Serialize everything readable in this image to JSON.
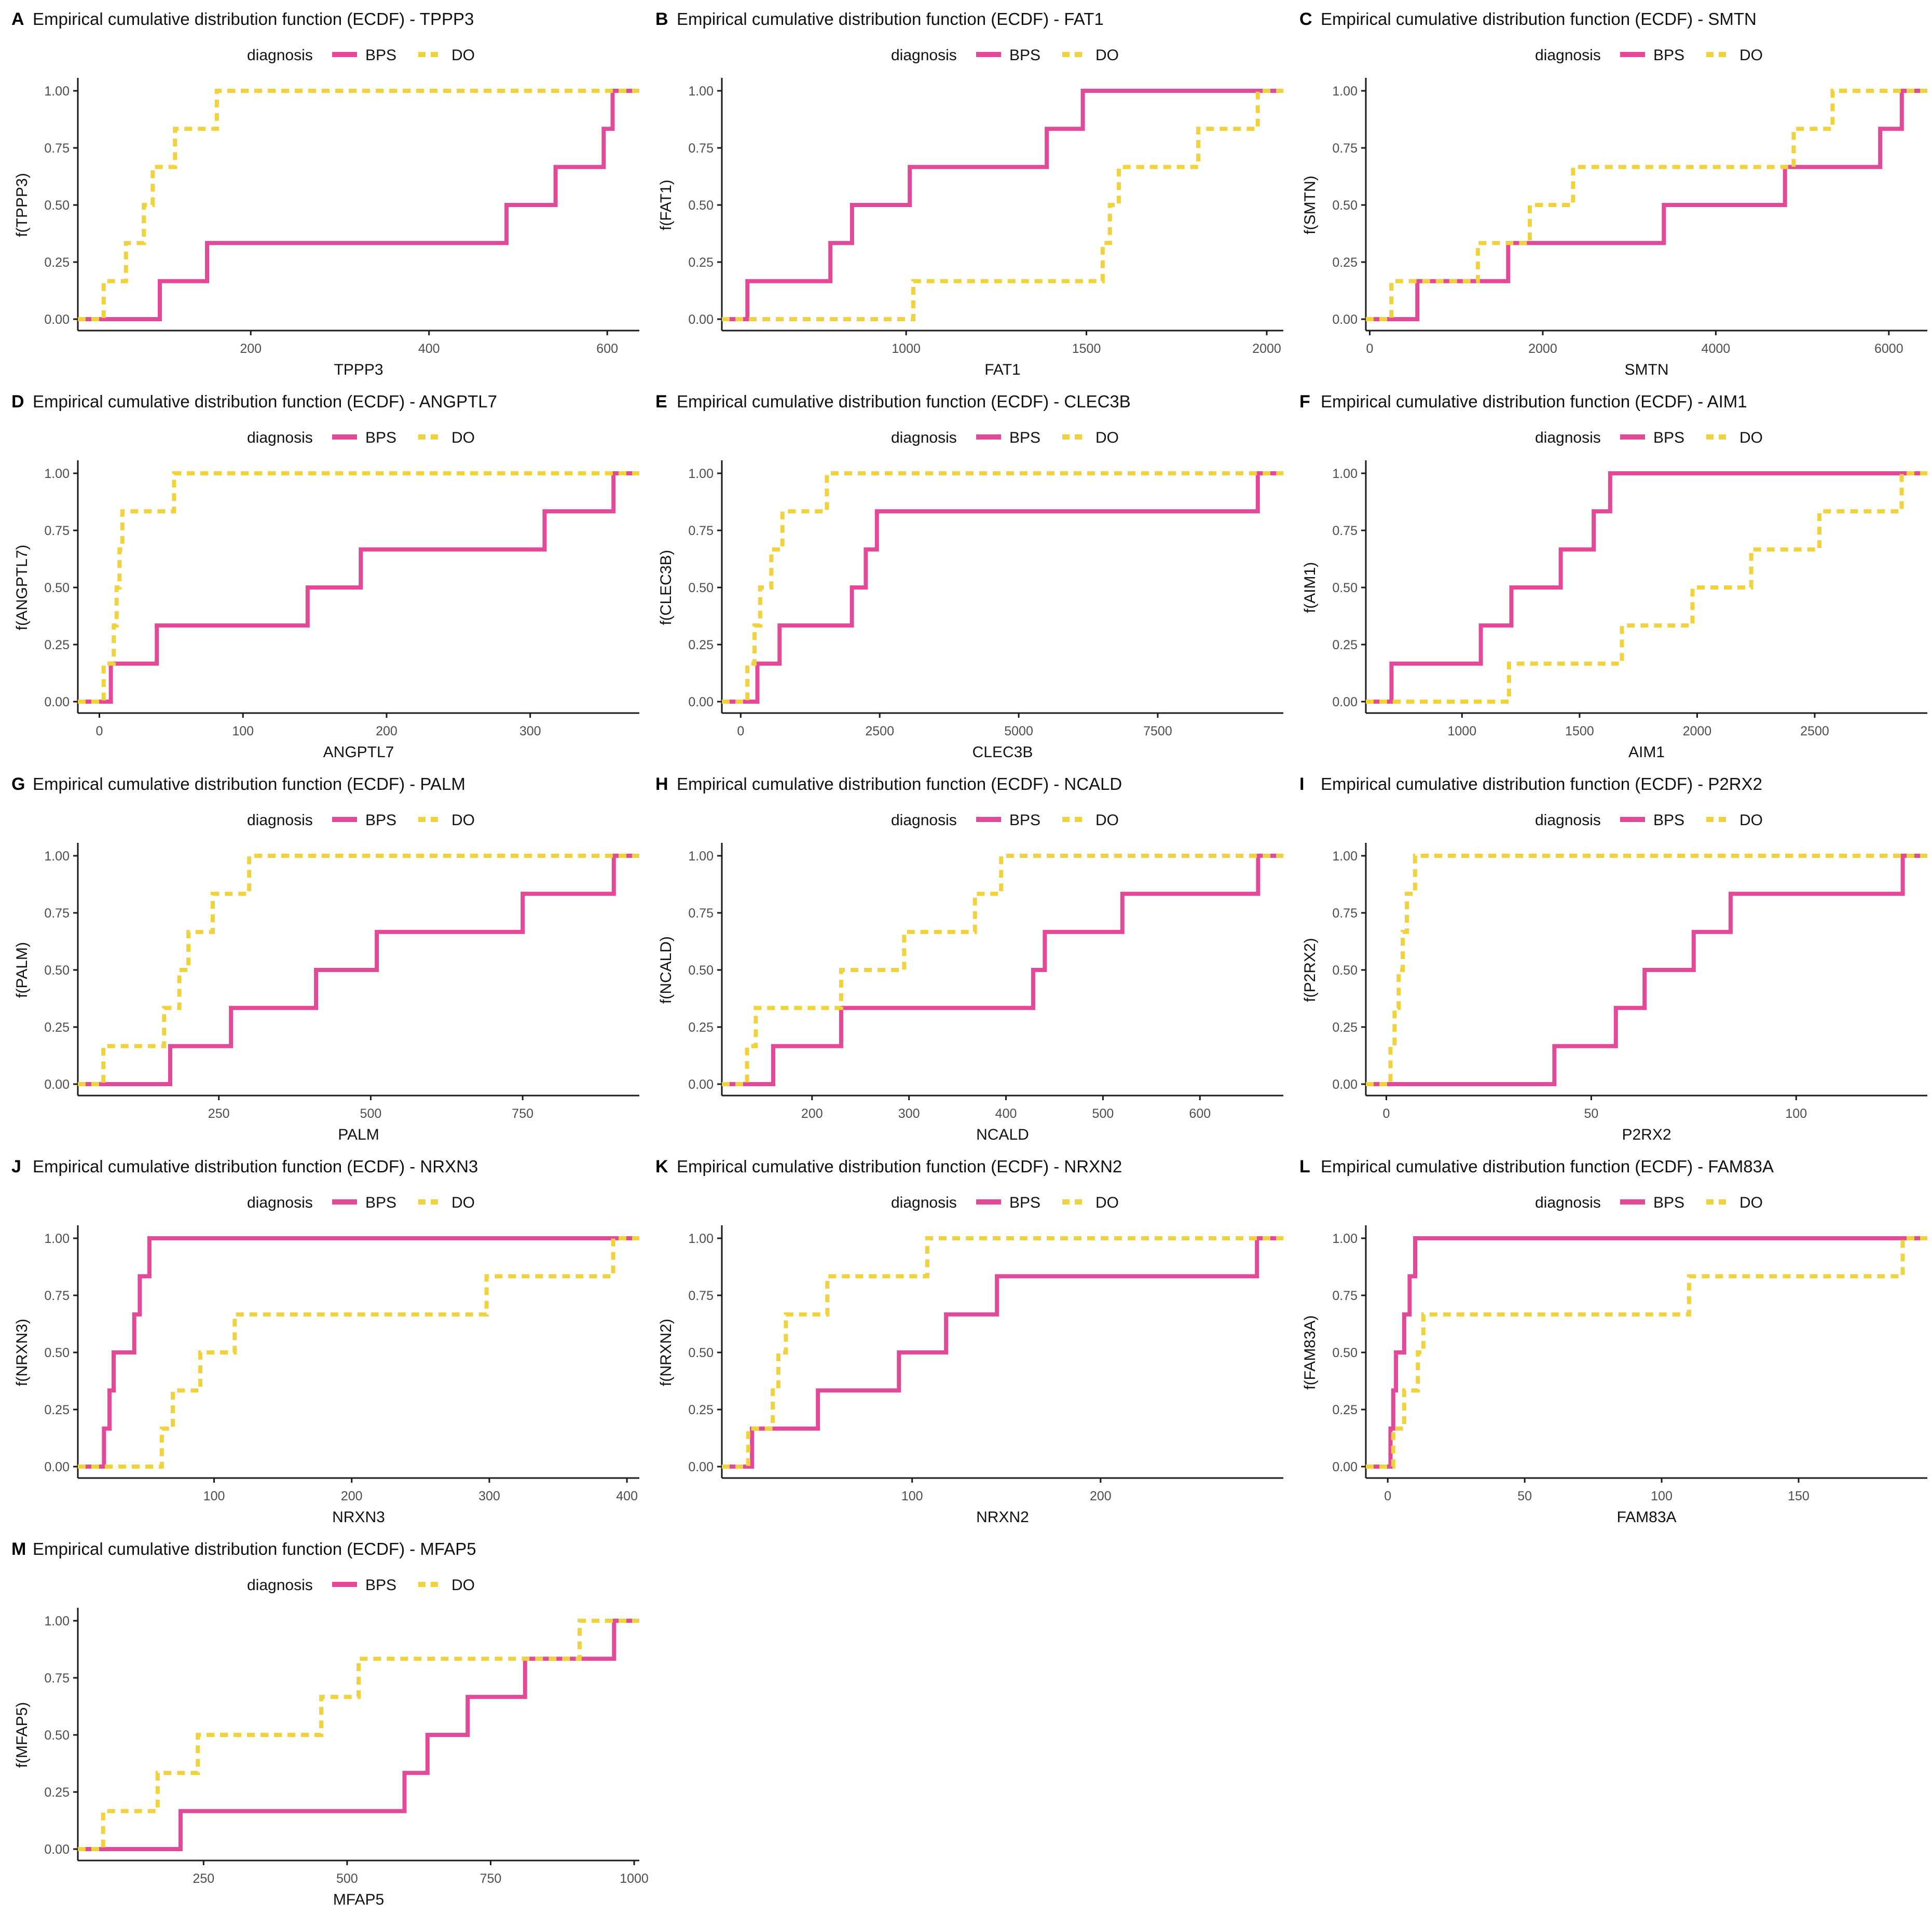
{
  "figure_type": "ecdf-grid",
  "series_colors": {
    "bps": "#E24A99",
    "do": "#EFD23E"
  },
  "axis_text_color": "#4D4D4D",
  "axis_line_color": "#1a1a1a",
  "legend": {
    "title": "diagnosis",
    "bps_label": "BPS",
    "do_label": "DO"
  },
  "y_ticks": [
    "0.00",
    "0.25",
    "0.50",
    "0.75",
    "1.00"
  ],
  "chart_data": [
    {
      "type": "line",
      "subtype": "ecdf-step",
      "letter": "A",
      "title": "Empirical cumulative distribution function (ECDF) -  TPPP3",
      "xlabel": "TPPP3",
      "ylabel": "f(TPPP3)",
      "xlim": [
        6,
        636
      ],
      "xticks": [
        200,
        400,
        600
      ],
      "ylim": [
        0,
        1
      ],
      "series": [
        {
          "name": "BPS",
          "color_key": "bps",
          "dash": false,
          "values": [
            98,
            151,
            487,
            542,
            596,
            606
          ]
        },
        {
          "name": "DO",
          "color_key": "do",
          "dash": true,
          "values": [
            35,
            60,
            80,
            90,
            115,
            162
          ]
        }
      ]
    },
    {
      "type": "line",
      "subtype": "ecdf-step",
      "letter": "B",
      "title": "Empirical cumulative distribution function (ECDF) -  FAT1",
      "xlabel": "FAT1",
      "ylabel": "f(FAT1)",
      "xlim": [
        489,
        2046
      ],
      "xticks": [
        1000,
        1500,
        2000
      ],
      "ylim": [
        0,
        1
      ],
      "series": [
        {
          "name": "BPS",
          "color_key": "bps",
          "dash": false,
          "values": [
            560,
            790,
            850,
            1010,
            1390,
            1490
          ]
        },
        {
          "name": "DO",
          "color_key": "do",
          "dash": true,
          "values": [
            1020,
            1545,
            1565,
            1590,
            1810,
            1975
          ]
        }
      ]
    },
    {
      "type": "line",
      "subtype": "ecdf-step",
      "letter": "C",
      "title": "Empirical cumulative distribution function (ECDF) -  SMTN",
      "xlabel": "SMTN",
      "ylabel": "f(SMTN)",
      "xlim": [
        -45,
        6445
      ],
      "xticks": [
        0,
        2000,
        4000,
        6000
      ],
      "ylim": [
        0,
        1
      ],
      "series": [
        {
          "name": "BPS",
          "color_key": "bps",
          "dash": false,
          "values": [
            550,
            1600,
            3400,
            4800,
            5900,
            6150
          ]
        },
        {
          "name": "DO",
          "color_key": "do",
          "dash": true,
          "values": [
            250,
            1250,
            1850,
            2350,
            4900,
            5350
          ]
        }
      ]
    },
    {
      "type": "line",
      "subtype": "ecdf-step",
      "letter": "D",
      "title": "Empirical cumulative distribution function (ECDF) -  ANGPTL7",
      "xlabel": "ANGPTL7",
      "ylabel": "f(ANGPTL7)",
      "xlim": [
        -15,
        376
      ],
      "xticks": [
        0,
        100,
        200,
        300
      ],
      "ylim": [
        0,
        1
      ],
      "series": [
        {
          "name": "BPS",
          "color_key": "bps",
          "dash": false,
          "values": [
            8,
            40,
            145,
            182,
            310,
            358
          ]
        },
        {
          "name": "DO",
          "color_key": "do",
          "dash": true,
          "values": [
            3,
            10,
            12,
            14,
            16,
            52
          ]
        }
      ]
    },
    {
      "type": "line",
      "subtype": "ecdf-step",
      "letter": "E",
      "title": "Empirical cumulative distribution function (ECDF) -  CLEC3B",
      "xlabel": "CLEC3B",
      "ylabel": "f(CLEC3B)",
      "xlim": [
        -339,
        9759
      ],
      "xticks": [
        0,
        2500,
        5000,
        7500
      ],
      "ylim": [
        0,
        1
      ],
      "series": [
        {
          "name": "BPS",
          "color_key": "bps",
          "dash": false,
          "values": [
            300,
            700,
            2000,
            2250,
            2450,
            9300
          ]
        },
        {
          "name": "DO",
          "color_key": "do",
          "dash": true,
          "values": [
            120,
            250,
            350,
            550,
            750,
            1550
          ]
        }
      ]
    },
    {
      "type": "line",
      "subtype": "ecdf-step",
      "letter": "F",
      "title": "Empirical cumulative distribution function (ECDF) -  AIM1",
      "xlabel": "AIM1",
      "ylabel": "f(AIM1)",
      "xlim": [
        591,
        2979
      ],
      "xticks": [
        1000,
        1500,
        2000,
        2500
      ],
      "ylim": [
        0,
        1
      ],
      "series": [
        {
          "name": "BPS",
          "color_key": "bps",
          "dash": false,
          "values": [
            700,
            1080,
            1210,
            1420,
            1560,
            1630
          ]
        },
        {
          "name": "DO",
          "color_key": "do",
          "dash": true,
          "values": [
            1200,
            1680,
            1980,
            2230,
            2520,
            2870
          ]
        }
      ]
    },
    {
      "type": "line",
      "subtype": "ecdf-step",
      "letter": "G",
      "title": "Empirical cumulative distribution function (ECDF) -  PALM",
      "xlabel": "PALM",
      "ylabel": "f(PALM)",
      "xlim": [
        18,
        942
      ],
      "xticks": [
        250,
        500,
        750
      ],
      "ylim": [
        0,
        1
      ],
      "series": [
        {
          "name": "BPS",
          "color_key": "bps",
          "dash": false,
          "values": [
            170,
            270,
            410,
            510,
            750,
            900
          ]
        },
        {
          "name": "DO",
          "color_key": "do",
          "dash": true,
          "values": [
            60,
            160,
            185,
            200,
            240,
            300
          ]
        }
      ]
    },
    {
      "type": "line",
      "subtype": "ecdf-step",
      "letter": "H",
      "title": "Empirical cumulative distribution function (ECDF) -  NCALD",
      "xlabel": "NCALD",
      "ylabel": "f(NCALD)",
      "xlim": [
        107,
        686
      ],
      "xticks": [
        200,
        300,
        400,
        500,
        600
      ],
      "ylim": [
        0,
        1
      ],
      "series": [
        {
          "name": "BPS",
          "color_key": "bps",
          "dash": false,
          "values": [
            160,
            230,
            428,
            440,
            520,
            660
          ]
        },
        {
          "name": "DO",
          "color_key": "do",
          "dash": true,
          "values": [
            133,
            142,
            230,
            295,
            368,
            395
          ]
        }
      ]
    },
    {
      "type": "line",
      "subtype": "ecdf-step",
      "letter": "I",
      "title": "Empirical cumulative distribution function (ECDF) -  P2RX2",
      "xlabel": "P2RX2",
      "ylabel": "f(P2RX2)",
      "xlim": [
        -5,
        132
      ],
      "xticks": [
        0,
        50,
        100
      ],
      "ylim": [
        0,
        1
      ],
      "series": [
        {
          "name": "BPS",
          "color_key": "bps",
          "dash": false,
          "values": [
            41,
            56,
            63,
            75,
            84,
            126
          ]
        },
        {
          "name": "DO",
          "color_key": "do",
          "dash": true,
          "values": [
            1,
            2,
            3,
            4,
            5,
            7
          ]
        }
      ]
    },
    {
      "type": "line",
      "subtype": "ecdf-step",
      "letter": "J",
      "title": "Empirical cumulative distribution function (ECDF) -  NRXN3",
      "xlabel": "NRXN3",
      "ylabel": "f(NRXN3)",
      "xlim": [
        1,
        409
      ],
      "xticks": [
        100,
        200,
        300,
        400
      ],
      "ylim": [
        0,
        1
      ],
      "series": [
        {
          "name": "BPS",
          "color_key": "bps",
          "dash": false,
          "values": [
            20,
            24,
            27,
            42,
            46,
            53
          ]
        },
        {
          "name": "DO",
          "color_key": "do",
          "dash": true,
          "values": [
            62,
            70,
            90,
            115,
            298,
            390
          ]
        }
      ]
    },
    {
      "type": "line",
      "subtype": "ecdf-step",
      "letter": "K",
      "title": "Empirical cumulative distribution function (ECDF) -  NRXN2",
      "xlabel": "NRXN2",
      "ylabel": "f(NRXN2)",
      "xlim": [
        -1,
        297
      ],
      "xticks": [
        100,
        200
      ],
      "ylim": [
        0,
        1
      ],
      "series": [
        {
          "name": "BPS",
          "color_key": "bps",
          "dash": false,
          "values": [
            15,
            50,
            93,
            118,
            145,
            283
          ]
        },
        {
          "name": "DO",
          "color_key": "do",
          "dash": true,
          "values": [
            13,
            26,
            29,
            33,
            55,
            108
          ]
        }
      ]
    },
    {
      "type": "line",
      "subtype": "ecdf-step",
      "letter": "L",
      "title": "Empirical cumulative distribution function (ECDF) -  FAM83A",
      "xlabel": "FAM83A",
      "ylabel": "f(FAM83A)",
      "xlim": [
        -8,
        197
      ],
      "xticks": [
        0,
        50,
        100,
        150
      ],
      "ylim": [
        0,
        1
      ],
      "series": [
        {
          "name": "BPS",
          "color_key": "bps",
          "dash": false,
          "values": [
            1,
            2,
            3,
            6,
            8,
            10
          ]
        },
        {
          "name": "DO",
          "color_key": "do",
          "dash": true,
          "values": [
            2,
            6,
            11,
            13,
            110,
            188
          ]
        }
      ]
    },
    {
      "type": "line",
      "subtype": "ecdf-step",
      "letter": "M",
      "title": "Empirical cumulative distribution function (ECDF) -  MFAP5",
      "xlabel": "MFAP5",
      "ylabel": "f(MFAP5)",
      "xlim": [
        31,
        1009
      ],
      "xticks": [
        250,
        500,
        750,
        1000
      ],
      "ylim": [
        0,
        1
      ],
      "series": [
        {
          "name": "BPS",
          "color_key": "bps",
          "dash": false,
          "values": [
            210,
            600,
            640,
            710,
            810,
            965
          ]
        },
        {
          "name": "DO",
          "color_key": "do",
          "dash": true,
          "values": [
            75,
            170,
            240,
            455,
            520,
            905
          ]
        }
      ]
    }
  ]
}
